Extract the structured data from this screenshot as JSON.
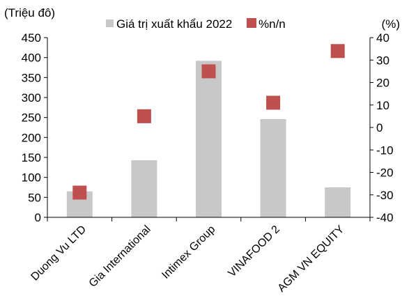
{
  "chart_data": {
    "type": "bar",
    "title": "",
    "categories": [
      "Duong Vu LTD",
      "Gia International",
      "Intimex Group",
      "VINAFOOD 2",
      "AGM VN EQUITY"
    ],
    "series": [
      {
        "name": "Giá trị xuất khẩu 2022",
        "type": "bar",
        "axis": "left",
        "color": "#c8c8c8",
        "values": [
          65,
          143,
          392,
          246,
          75
        ]
      },
      {
        "name": "%n/n",
        "type": "scatter",
        "axis": "right",
        "color": "#c0504d",
        "values": [
          -29,
          5,
          25,
          11,
          34
        ]
      }
    ],
    "left_axis": {
      "label": "(Triệu đô)",
      "ylim": [
        0,
        450
      ],
      "ticks": [
        "0",
        "50",
        "100",
        "150",
        "200",
        "250",
        "300",
        "350",
        "400",
        "450"
      ]
    },
    "right_axis": {
      "label": "(%)",
      "ylim": [
        -40,
        40
      ],
      "ticks": [
        "-40",
        "-30",
        "-20",
        "-10",
        "0",
        "10",
        "20",
        "30",
        "40"
      ]
    },
    "legend_position": "top",
    "grid": false
  }
}
